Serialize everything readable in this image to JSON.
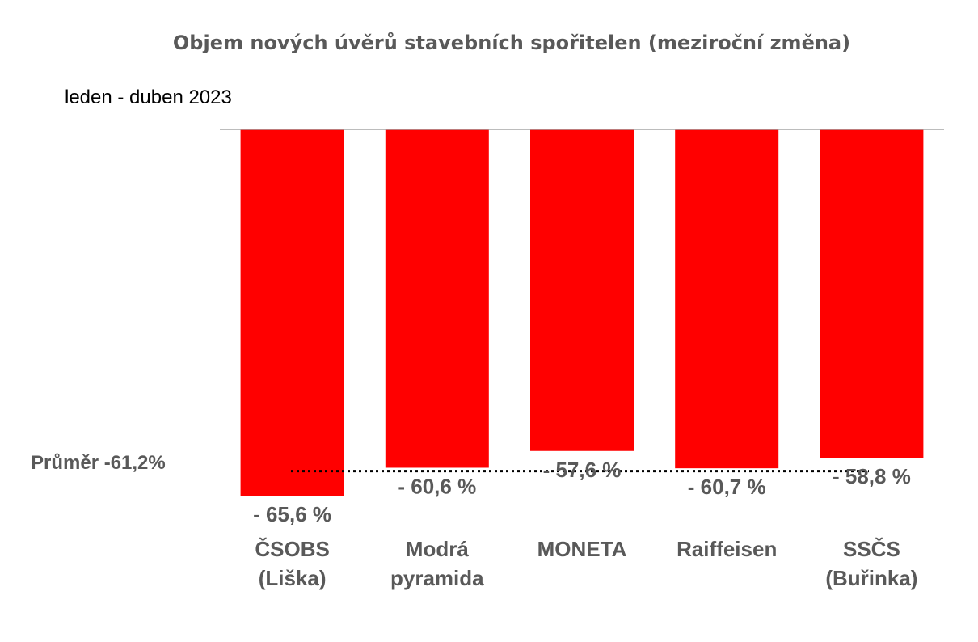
{
  "chart_data": {
    "type": "bar",
    "title": "Objem nových úvěrů stavebních spořitelen (meziroční změna)",
    "subtitle": "leden - duben 2023",
    "categories": [
      [
        "ČSOBS",
        "(Liška)"
      ],
      [
        "Modrá",
        "pyramida"
      ],
      [
        "MONETA"
      ],
      [
        "Raiffeisen"
      ],
      [
        "SSČS",
        "(Buřinka)"
      ]
    ],
    "values": [
      -65.6,
      -60.6,
      -57.6,
      -60.7,
      -58.8
    ],
    "data_labels": [
      "- 65,6 %",
      "- 60,6 %",
      "- 57,6 %",
      "- 60,7 %",
      "- 58,8 %"
    ],
    "average": {
      "label": "Průměr -61,2%",
      "value": -61.2
    },
    "ylim": [
      -65.6,
      0
    ],
    "grid": false,
    "legend": "none",
    "bar_color": "#ff0000",
    "axis_color": "#a6a6a6",
    "text_color": "#595959"
  }
}
